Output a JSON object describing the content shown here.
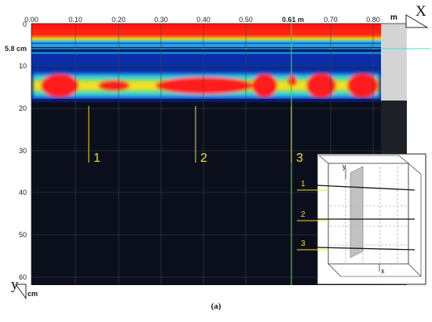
{
  "axes": {
    "x_ticks": [
      "0.00",
      "0.10",
      "0.20",
      "0.30",
      "0.40",
      "0.50",
      "0.61 m",
      "0.70",
      "0.80"
    ],
    "y_ticks": [
      "0",
      "5.8 cm",
      "10",
      "20",
      "30",
      "40",
      "50",
      "60"
    ],
    "x_unit": "m",
    "x_label": "X",
    "y_label": "y",
    "y_unit": "cm"
  },
  "markers": [
    {
      "label": "1",
      "x_m": 0.13
    },
    {
      "label": "2",
      "x_m": 0.38
    },
    {
      "label": "3",
      "x_m": 0.61
    }
  ],
  "inset": {
    "labels": [
      "1",
      "2",
      "3"
    ],
    "axis_y": "y",
    "axis_x": "x"
  },
  "caption": "(a)",
  "colors": {
    "background_dark": "#0b0f1c",
    "hot": "#ff0f0f",
    "band": "#0a43c9",
    "marker": "#f2e21a",
    "cursor_green": "#3cd13c",
    "grey_panel": "#d4d4d4"
  }
}
